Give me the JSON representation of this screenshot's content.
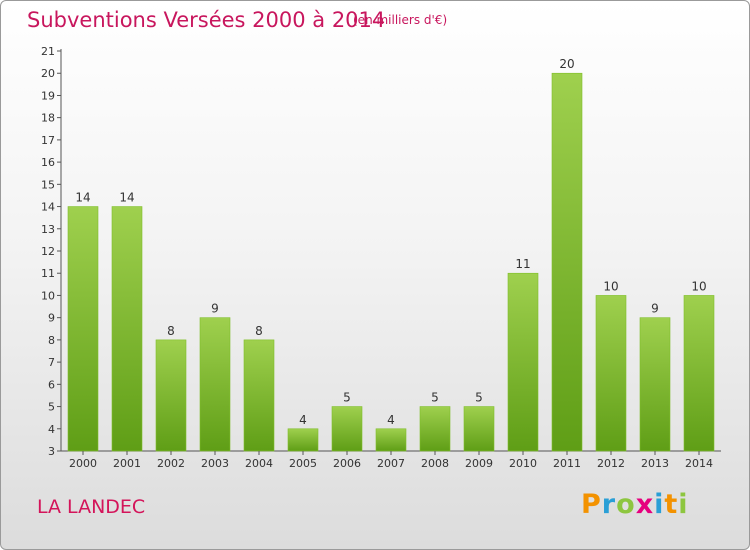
{
  "header": {
    "title": "Subventions Versées 2000 à 2014",
    "unit": "(en milliers d'€)"
  },
  "footer": {
    "city": "LA LANDEC",
    "logo": "Proxiti"
  },
  "colors": {
    "bar_light": "#9fd04e",
    "bar_dark": "#5f9e16",
    "title": "#c8165d",
    "logo_letters": [
      "#f39200",
      "#2a9fd6",
      "#8dc63f",
      "#e6007e",
      "#2a9fd6",
      "#f39200",
      "#8dc63f"
    ]
  },
  "chart_data": {
    "type": "bar",
    "categories": [
      "2000",
      "2001",
      "2002",
      "2003",
      "2004",
      "2005",
      "2006",
      "2007",
      "2008",
      "2009",
      "2010",
      "2011",
      "2012",
      "2013",
      "2014"
    ],
    "values": [
      14,
      14,
      8,
      9,
      8,
      4,
      5,
      4,
      5,
      5,
      11,
      20,
      10,
      9,
      10
    ],
    "ylim": [
      3,
      21
    ],
    "yticks": [
      3,
      4,
      5,
      6,
      7,
      8,
      9,
      10,
      11,
      12,
      13,
      14,
      15,
      16,
      17,
      18,
      19,
      20,
      21
    ],
    "grid": false,
    "legend": "none"
  }
}
